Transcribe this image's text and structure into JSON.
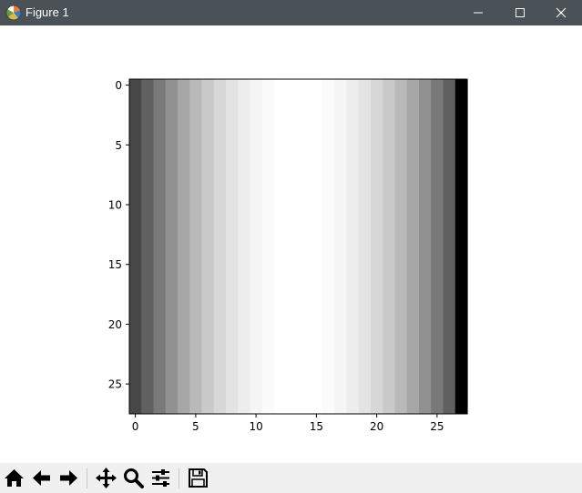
{
  "window": {
    "title": "Figure 1"
  },
  "toolbar": {
    "buttons": [
      {
        "name": "home-icon",
        "tooltip": "Reset original view"
      },
      {
        "name": "back-arrow-icon",
        "tooltip": "Back to previous view"
      },
      {
        "name": "forward-arrow-icon",
        "tooltip": "Forward to next view"
      },
      {
        "name": "pan-move-icon",
        "tooltip": "Pan axes"
      },
      {
        "name": "zoom-magnifier-icon",
        "tooltip": "Zoom to rectangle"
      },
      {
        "name": "configure-subplots-icon",
        "tooltip": "Configure subplots"
      },
      {
        "name": "save-floppy-icon",
        "tooltip": "Save the figure"
      }
    ]
  },
  "chart_data": {
    "type": "heatmap",
    "colormap": "gray",
    "rows": 28,
    "columns": 28,
    "column_values": [
      71,
      96,
      121,
      145,
      166,
      185,
      201,
      215,
      227,
      237,
      245,
      251,
      255,
      255,
      255,
      255,
      251,
      245,
      237,
      227,
      215,
      201,
      185,
      166,
      145,
      121,
      96,
      0
    ],
    "value_note": "each column is uniform down all 28 rows; values are gray intensity 0-255",
    "x_ticks": [
      "0",
      "5",
      "10",
      "15",
      "20",
      "25"
    ],
    "y_ticks": [
      "0",
      "5",
      "10",
      "15",
      "20",
      "25"
    ],
    "xlim": [
      -0.5,
      27.5
    ],
    "ylim": [
      27.5,
      -0.5
    ],
    "title": "",
    "xlabel": "",
    "ylabel": ""
  }
}
